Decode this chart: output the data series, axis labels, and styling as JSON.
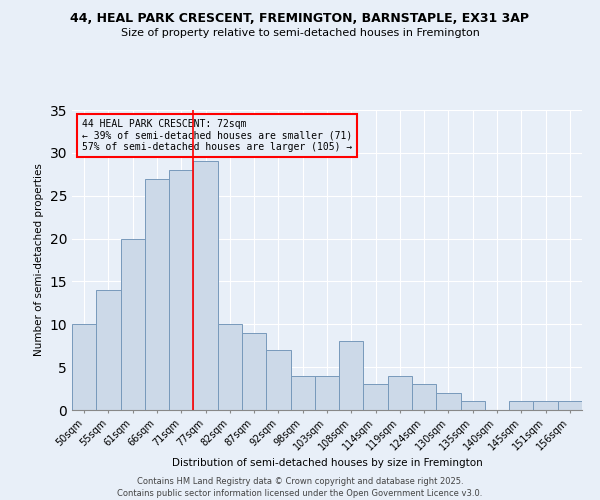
{
  "title1": "44, HEAL PARK CRESCENT, FREMINGTON, BARNSTAPLE, EX31 3AP",
  "title2": "Size of property relative to semi-detached houses in Fremington",
  "xlabel": "Distribution of semi-detached houses by size in Fremington",
  "ylabel": "Number of semi-detached properties",
  "categories": [
    "50sqm",
    "55sqm",
    "61sqm",
    "66sqm",
    "71sqm",
    "77sqm",
    "82sqm",
    "87sqm",
    "92sqm",
    "98sqm",
    "103sqm",
    "108sqm",
    "114sqm",
    "119sqm",
    "124sqm",
    "130sqm",
    "135sqm",
    "140sqm",
    "145sqm",
    "151sqm",
    "156sqm"
  ],
  "values": [
    10,
    14,
    20,
    27,
    28,
    29,
    10,
    9,
    7,
    4,
    4,
    8,
    3,
    4,
    3,
    2,
    1,
    0,
    1,
    1,
    1
  ],
  "bar_color": "#ccd9e8",
  "bar_edge_color": "#7799bb",
  "red_line_x": 4.5,
  "annotation_title": "44 HEAL PARK CRESCENT: 72sqm",
  "annotation_line1": "← 39% of semi-detached houses are smaller (71)",
  "annotation_line2": "57% of semi-detached houses are larger (105) →",
  "ylim": [
    0,
    35
  ],
  "yticks": [
    0,
    5,
    10,
    15,
    20,
    25,
    30,
    35
  ],
  "footer1": "Contains HM Land Registry data © Crown copyright and database right 2025.",
  "footer2": "Contains public sector information licensed under the Open Government Licence v3.0.",
  "bg_color": "#e8eff8"
}
